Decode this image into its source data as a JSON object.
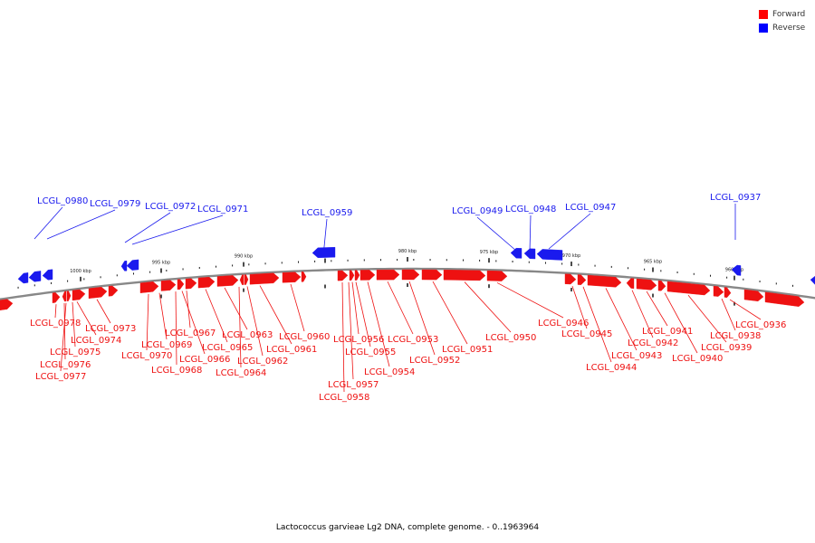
{
  "legend": {
    "forward_label": "Forward",
    "reverse_label": "Reverse",
    "forward_color": "#ff0000",
    "reverse_color": "#0000ff"
  },
  "caption": "Lactococcus garvieae Lg2 DNA, complete genome. - 0..1963964",
  "colors": {
    "forward": "#ee1111",
    "reverse": "#1a1aee",
    "backbone": "#888888"
  },
  "ticks": [
    "1000 kbp",
    "995 kbp",
    "990 kbp",
    "985 kbp",
    "980 kbp",
    "975 kbp",
    "970 kbp",
    "965 kbp",
    "960 kbp"
  ],
  "reverse_genes": [
    "LCGL_0980",
    "LCGL_0979",
    "LCGL_0972",
    "LCGL_0971",
    "LCGL_0959",
    "LCGL_0949",
    "LCGL_0948",
    "LCGL_0947",
    "LCGL_0937"
  ],
  "forward_genes": [
    "LCGL_0978",
    "LCGL_0976",
    "LCGL_0977",
    "LCGL_0975",
    "LCGL_0974",
    "LCGL_0973",
    "LCGL_0970",
    "LCGL_0969",
    "LCGL_0968",
    "LCGL_0967",
    "LCGL_0966",
    "LCGL_0965",
    "LCGL_0964",
    "LCGL_0963",
    "LCGL_0962",
    "LCGL_0961",
    "LCGL_0960",
    "LCGL_0958",
    "LCGL_0957",
    "LCGL_0956",
    "LCGL_0955",
    "LCGL_0954",
    "LCGL_0953",
    "LCGL_0952",
    "LCGL_0951",
    "LCGL_0950",
    "LCGL_0946",
    "LCGL_0945",
    "LCGL_0944",
    "LCGL_0943",
    "LCGL_0942",
    "LCGL_0941",
    "LCGL_0940",
    "LCGL_0939",
    "LCGL_0938",
    "LCGL_0936"
  ]
}
